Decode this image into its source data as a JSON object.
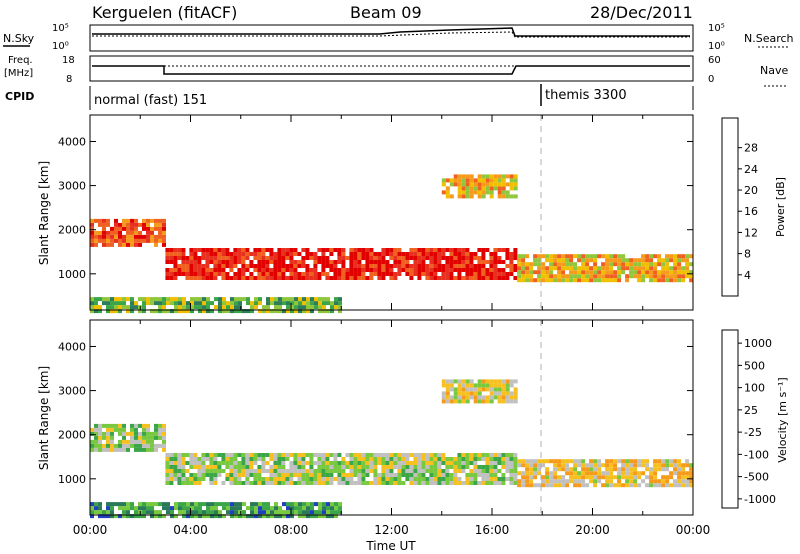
{
  "header": {
    "station": "Kerguelen (fitACF)",
    "beam": "Beam 09",
    "date": "28/Dec/2011"
  },
  "nsky_panel": {
    "label": "N.Sky",
    "left_ticks": [
      "10^5",
      "10^0"
    ],
    "right_ticks": [
      "10^5",
      "10^0"
    ],
    "right_label": "N.Search"
  },
  "freq_panel": {
    "label_line1": "Freq.",
    "label_line2": "[MHz]",
    "left_ticks": [
      "18",
      "8"
    ],
    "right_ticks": [
      "60",
      "0"
    ],
    "right_label": "Nave"
  },
  "cpid_panel": {
    "label": "CPID",
    "modes": [
      {
        "name": "normal (fast) 151",
        "start_hour": 0
      },
      {
        "name": "themis 3300",
        "start_hour": 18
      }
    ]
  },
  "chart_data": [
    {
      "type": "heatmap",
      "xlabel": "",
      "ylabel": "Slant Range [km]",
      "x_range_hours": [
        0,
        24
      ],
      "ylim": [
        180,
        4600
      ],
      "y_ticks": [
        "1000",
        "2000",
        "3000",
        "4000"
      ],
      "colorbar": {
        "label": "Power [dB]",
        "ticks": [
          "4",
          "8",
          "12",
          "16",
          "20",
          "24",
          "28"
        ],
        "colors": [
          "#0000ee",
          "#1f3f9f",
          "#2e7d5a",
          "#3aa648",
          "#8fc63b",
          "#f0c000",
          "#f59a1a",
          "#f06020",
          "#e83020",
          "#e00000"
        ]
      },
      "bands": [
        {
          "t0": 0,
          "t1": 3,
          "r0": 1700,
          "r1": 2300,
          "level": 0.8
        },
        {
          "t0": 3,
          "t1": 17,
          "r0": 950,
          "r1": 1600,
          "level": 0.9
        },
        {
          "t0": 17,
          "t1": 24,
          "r0": 900,
          "r1": 1500,
          "level": 0.6
        },
        {
          "t0": 0,
          "t1": 10,
          "r0": 200,
          "r1": 550,
          "level": 0.4
        },
        {
          "t0": 14,
          "t1": 17,
          "r0": 2800,
          "r1": 3300,
          "level": 0.6
        }
      ]
    },
    {
      "type": "heatmap",
      "xlabel": "Time UT",
      "ylabel": "Slant Range [km]",
      "x_range_hours": [
        0,
        24
      ],
      "ylim": [
        180,
        4600
      ],
      "x_ticks": [
        "00:00",
        "04:00",
        "08:00",
        "12:00",
        "16:00",
        "20:00",
        "00:00"
      ],
      "y_ticks": [
        "1000",
        "2000",
        "3000",
        "4000"
      ],
      "colorbar": {
        "label": "Velocity [m s^-1]",
        "ticks": [
          "1000",
          "500",
          "100",
          "25",
          "-25",
          "-100",
          "-500",
          "-1000"
        ],
        "colors": [
          "#2040c0",
          "#2a7a5a",
          "#3aa648",
          "#78c840",
          "#c0c0c0",
          "#f5c020",
          "#f59a1a",
          "#f06020",
          "#e00000"
        ]
      },
      "bands": [
        {
          "t0": 0,
          "t1": 3,
          "r0": 1700,
          "r1": 2300,
          "level": 0.45
        },
        {
          "t0": 3,
          "t1": 17,
          "r0": 950,
          "r1": 1600,
          "level": 0.45
        },
        {
          "t0": 17,
          "t1": 24,
          "r0": 900,
          "r1": 1500,
          "level": 0.6
        },
        {
          "t0": 0,
          "t1": 10,
          "r0": 200,
          "r1": 550,
          "level": 0.25
        },
        {
          "t0": 14,
          "t1": 17,
          "r0": 2800,
          "r1": 3300,
          "level": 0.55
        }
      ]
    }
  ]
}
